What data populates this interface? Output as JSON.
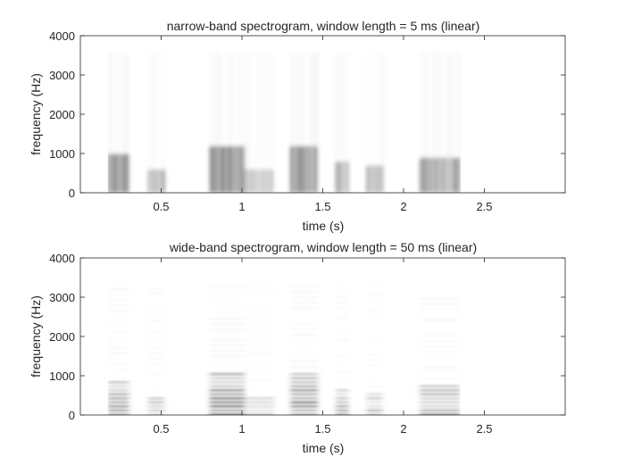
{
  "chart_data": [
    {
      "type": "heatmap",
      "title": "narrow-band spectrogram, window length = 5 ms (linear)",
      "xlabel": "time (s)",
      "ylabel": "frequency (Hz)",
      "xlim": [
        0,
        3.0
      ],
      "ylim": [
        0,
        4000
      ],
      "xticks": [
        0.5,
        1,
        1.5,
        2,
        2.5
      ],
      "xtick_labels": [
        "0.5",
        "1",
        "1.5",
        "2",
        "2.5"
      ],
      "yticks": [
        0,
        1000,
        2000,
        3000,
        4000
      ],
      "ytick_labels": [
        "0",
        "1000",
        "2000",
        "3000",
        "4000"
      ],
      "colormap": "gray (white = low energy, black = high energy)",
      "grid": false,
      "energy_regions": [
        {
          "t_start": 0.17,
          "t_end": 0.3,
          "f_low": 0,
          "f_high": 1000,
          "intensity": 0.85
        },
        {
          "t_start": 0.42,
          "t_end": 0.52,
          "f_low": 0,
          "f_high": 600,
          "intensity": 0.6
        },
        {
          "t_start": 0.8,
          "t_end": 1.02,
          "f_low": 0,
          "f_high": 1200,
          "intensity": 0.95
        },
        {
          "t_start": 1.02,
          "t_end": 1.2,
          "f_low": 0,
          "f_high": 600,
          "intensity": 0.45
        },
        {
          "t_start": 1.3,
          "t_end": 1.47,
          "f_low": 0,
          "f_high": 1200,
          "intensity": 0.9
        },
        {
          "t_start": 1.58,
          "t_end": 1.66,
          "f_low": 0,
          "f_high": 800,
          "intensity": 0.65
        },
        {
          "t_start": 1.77,
          "t_end": 1.87,
          "f_low": 0,
          "f_high": 700,
          "intensity": 0.6
        },
        {
          "t_start": 2.1,
          "t_end": 2.35,
          "f_low": 0,
          "f_high": 900,
          "intensity": 0.8
        }
      ]
    },
    {
      "type": "heatmap",
      "title": "wide-band spectrogram, window length = 50 ms (linear)",
      "xlabel": "time (s)",
      "ylabel": "frequency (Hz)",
      "xlim": [
        0,
        3.0
      ],
      "ylim": [
        0,
        4000
      ],
      "xticks": [
        0.5,
        1,
        1.5,
        2,
        2.5
      ],
      "xtick_labels": [
        "0.5",
        "1",
        "1.5",
        "2",
        "2.5"
      ],
      "yticks": [
        0,
        1000,
        2000,
        3000,
        4000
      ],
      "ytick_labels": [
        "0",
        "1000",
        "2000",
        "3000",
        "4000"
      ],
      "colormap": "gray (white = low energy, black = high energy)",
      "grid": false,
      "energy_regions": [
        {
          "t_start": 0.17,
          "t_end": 0.3,
          "f_low": 0,
          "f_high": 900,
          "intensity": 0.75
        },
        {
          "t_start": 0.42,
          "t_end": 0.52,
          "f_low": 0,
          "f_high": 500,
          "intensity": 0.5
        },
        {
          "t_start": 0.8,
          "t_end": 1.02,
          "f_low": 0,
          "f_high": 1100,
          "intensity": 0.85
        },
        {
          "t_start": 1.02,
          "t_end": 1.2,
          "f_low": 0,
          "f_high": 500,
          "intensity": 0.4
        },
        {
          "t_start": 1.3,
          "t_end": 1.47,
          "f_low": 0,
          "f_high": 1100,
          "intensity": 0.8
        },
        {
          "t_start": 1.58,
          "t_end": 1.66,
          "f_low": 0,
          "f_high": 700,
          "intensity": 0.55
        },
        {
          "t_start": 1.77,
          "t_end": 1.87,
          "f_low": 0,
          "f_high": 600,
          "intensity": 0.5
        },
        {
          "t_start": 2.1,
          "t_end": 2.35,
          "f_low": 0,
          "f_high": 800,
          "intensity": 0.7
        }
      ]
    }
  ]
}
